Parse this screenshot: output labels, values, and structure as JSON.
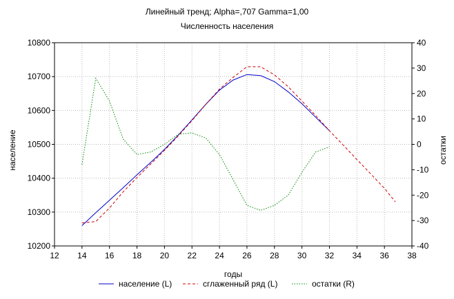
{
  "chart_data": {
    "type": "line",
    "title": "Линейный тренд; Alpha=,707 Gamma=1,00",
    "subtitle": "Численность населения",
    "xlabel": "годы",
    "ylabel_left": "население",
    "ylabel_right": "остатки",
    "xlim": [
      12,
      38
    ],
    "ylim_left": [
      10200,
      10800
    ],
    "ylim_right": [
      -40,
      40
    ],
    "xticks": [
      12,
      14,
      16,
      18,
      20,
      22,
      24,
      26,
      28,
      30,
      32,
      34,
      36,
      38
    ],
    "yticks_left": [
      10200,
      10300,
      10400,
      10500,
      10600,
      10700,
      10800
    ],
    "yticks_right": [
      -40,
      -30,
      -20,
      -10,
      0,
      10,
      20,
      30,
      40
    ],
    "grid": true,
    "legend_position": "bottom",
    "series": [
      {
        "name": "население (L)",
        "axis": "left",
        "color": "#0000cc",
        "style": "solid",
        "x": [
          14,
          15,
          16,
          17,
          18,
          19,
          20,
          21,
          22,
          23,
          24,
          25,
          26,
          27,
          28,
          29,
          30,
          31,
          32
        ],
        "values": [
          10260,
          10298,
          10335,
          10372,
          10410,
          10447,
          10485,
          10527,
          10572,
          10618,
          10660,
          10690,
          10706,
          10703,
          10685,
          10655,
          10620,
          10580,
          10540
        ]
      },
      {
        "name": "сглаженный ряд (L)",
        "axis": "left",
        "color": "#cc0000",
        "style": "dashed",
        "x": [
          14,
          15,
          16,
          17,
          18,
          19,
          20,
          21,
          22,
          23,
          24,
          25,
          26,
          27,
          28,
          29,
          30,
          31,
          32,
          33,
          34,
          35,
          36,
          36.8
        ],
        "values": [
          10268,
          10272,
          10312,
          10360,
          10402,
          10442,
          10482,
          10525,
          10570,
          10618,
          10663,
          10698,
          10729,
          10729,
          10705,
          10670,
          10628,
          10585,
          10540,
          10498,
          10455,
          10413,
          10370,
          10330
        ]
      },
      {
        "name": "остатки (R)",
        "axis": "right",
        "color": "#008800",
        "style": "dotted",
        "x": [
          14,
          15,
          16,
          17,
          18,
          19,
          20,
          21,
          22,
          23,
          24,
          25,
          26,
          27,
          28,
          29,
          30,
          31,
          32
        ],
        "values": [
          -8,
          26,
          17,
          2,
          -4,
          -3,
          0,
          4,
          4.5,
          2.5,
          -4,
          -14,
          -24,
          -26,
          -24,
          -20,
          -11,
          -3,
          -1
        ]
      }
    ]
  }
}
